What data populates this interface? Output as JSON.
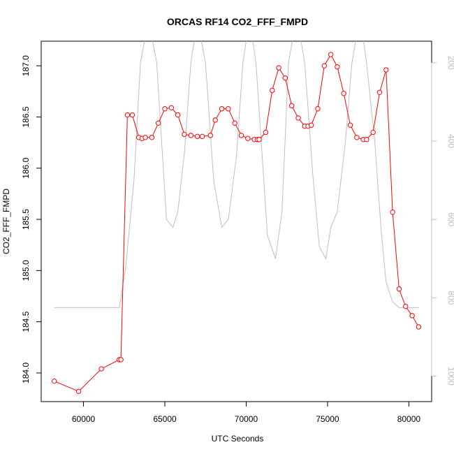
{
  "chart_data": {
    "type": "line",
    "title": "ORCAS RF14 CO2_FFF_FMPD",
    "xlabel": "UTC Seconds",
    "ylabel": "CO2_FFF_FMPD",
    "xlim": [
      57400,
      81400
    ],
    "ylim": [
      183.72,
      187.24
    ],
    "xticks": [
      60000,
      65000,
      70000,
      75000,
      80000
    ],
    "xtick_labels": [
      "60000",
      "65000",
      "70000",
      "75000",
      "80000"
    ],
    "yticks": [
      184.0,
      184.5,
      185.0,
      185.5,
      186.0,
      186.5,
      187.0
    ],
    "ytick_labels": [
      "184.0",
      "184.5",
      "185.0",
      "185.5",
      "186.0",
      "186.5",
      "187.0"
    ],
    "y2lim": [
      1065,
      145
    ],
    "y2ticks": [
      200,
      400,
      600,
      800,
      1000
    ],
    "y2tick_labels": [
      "200",
      "400",
      "600",
      "800",
      "1000"
    ],
    "colors": {
      "co2": "#ff0000",
      "secondary": "#bebebe",
      "axis": "#000000"
    },
    "series": [
      {
        "values_x": [
          58200,
          59700,
          61100,
          62200,
          62300,
          62700,
          63000,
          63400,
          63600,
          63800,
          64200,
          64600,
          65000,
          65400,
          65800,
          66200,
          66600,
          67000,
          67300,
          67800,
          68100,
          68500,
          68900,
          69300,
          69700,
          70100,
          70500,
          70700,
          70800,
          71200,
          71600,
          72000,
          72400,
          72800,
          73200,
          73600,
          73800,
          74000,
          74400,
          74800,
          75200,
          75600,
          76000,
          76400,
          76800,
          77200,
          77400,
          77800,
          78200,
          78600,
          79000,
          79400,
          79800,
          80200,
          80600
        ],
        "values_y": [
          183.92,
          183.82,
          184.04,
          184.13,
          184.13,
          186.52,
          186.52,
          186.3,
          186.29,
          186.3,
          186.3,
          186.44,
          186.58,
          186.59,
          186.52,
          186.33,
          186.32,
          186.31,
          186.31,
          186.32,
          186.47,
          186.58,
          186.58,
          186.44,
          186.32,
          186.29,
          186.28,
          186.28,
          186.28,
          186.35,
          186.76,
          186.98,
          186.88,
          186.61,
          186.49,
          186.41,
          186.41,
          186.42,
          186.58,
          187.0,
          187.11,
          186.99,
          186.73,
          186.42,
          186.3,
          186.28,
          186.28,
          186.35,
          186.74,
          186.96,
          185.57,
          184.82,
          184.65,
          184.56,
          184.45
        ]
      },
      {
        "axis": "right",
        "values_x": [
          58200,
          62200,
          62600,
          63100,
          63500,
          64000,
          64500,
          65100,
          65500,
          65800,
          66200,
          66600,
          67000,
          67500,
          68000,
          68500,
          68900,
          69400,
          69800,
          70200,
          70600,
          71000,
          71300,
          71800,
          72200,
          72600,
          73100,
          73600,
          74100,
          74500,
          74900,
          75200,
          75600,
          76100,
          76500,
          77000,
          77400,
          77900,
          78300,
          78600,
          79000,
          79400,
          80600
        ],
        "values_y": [
          825,
          825,
          720,
          500,
          200,
          90,
          200,
          600,
          620,
          580,
          430,
          200,
          90,
          200,
          500,
          620,
          600,
          440,
          200,
          90,
          200,
          450,
          640,
          700,
          580,
          200,
          80,
          200,
          490,
          670,
          700,
          620,
          580,
          400,
          200,
          80,
          200,
          400,
          630,
          760,
          810,
          825,
          825
        ]
      }
    ]
  }
}
